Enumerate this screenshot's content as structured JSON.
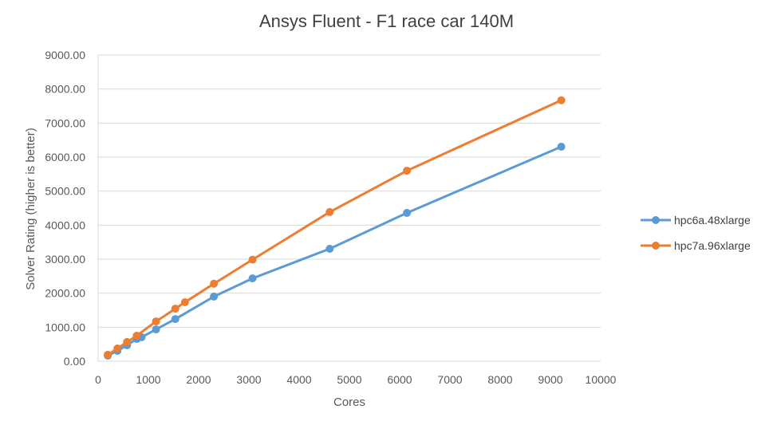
{
  "chart_data": {
    "type": "line",
    "title": "Ansys Fluent - F1 race car 140M",
    "xlabel": "Cores",
    "ylabel": "Solver Rating (higher is better)",
    "xlim": [
      0,
      10000
    ],
    "ylim": [
      0,
      9000
    ],
    "x_ticks": [
      "0",
      "1000",
      "2000",
      "3000",
      "4000",
      "5000",
      "6000",
      "7000",
      "8000",
      "9000",
      "10000"
    ],
    "y_ticks": [
      "0.00",
      "1000.00",
      "2000.00",
      "3000.00",
      "4000.00",
      "5000.00",
      "6000.00",
      "7000.00",
      "8000.00",
      "9000.00"
    ],
    "grid": "horizontal",
    "legend_position": "right",
    "series": [
      {
        "name": "hpc6a.48xlarge",
        "color": "#5B9BD5",
        "x": [
          192,
          384,
          576,
          768,
          864,
          1152,
          1536,
          2304,
          3072,
          4608,
          6144,
          9216
        ],
        "values": [
          165,
          305,
          470,
          655,
          705,
          935,
          1240,
          1900,
          2435,
          3305,
          4360,
          6305
        ]
      },
      {
        "name": "hpc7a.96xlarge",
        "color": "#ED7D31",
        "x": [
          192,
          384,
          576,
          768,
          1152,
          1536,
          1728,
          2304,
          3072,
          4608,
          6144,
          9216
        ],
        "values": [
          190,
          375,
          565,
          750,
          1170,
          1545,
          1735,
          2280,
          2985,
          4385,
          5600,
          7670
        ]
      }
    ]
  }
}
